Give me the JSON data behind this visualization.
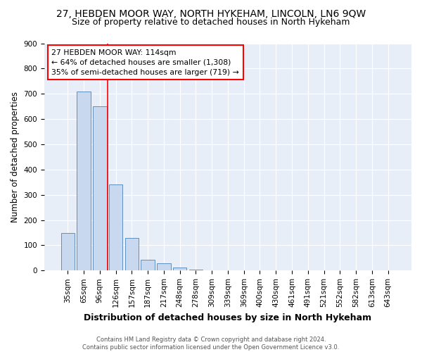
{
  "title_line1": "27, HEBDEN MOOR WAY, NORTH HYKEHAM, LINCOLN, LN6 9QW",
  "title_line2": "Size of property relative to detached houses in North Hykeham",
  "xlabel": "Distribution of detached houses by size in North Hykeham",
  "ylabel": "Number of detached properties",
  "footer_line1": "Contains HM Land Registry data © Crown copyright and database right 2024.",
  "footer_line2": "Contains public sector information licensed under the Open Government Licence v3.0.",
  "bar_labels": [
    "35sqm",
    "65sqm",
    "96sqm",
    "126sqm",
    "157sqm",
    "187sqm",
    "217sqm",
    "248sqm",
    "278sqm",
    "309sqm",
    "339sqm",
    "369sqm",
    "400sqm",
    "430sqm",
    "461sqm",
    "491sqm",
    "521sqm",
    "552sqm",
    "582sqm",
    "613sqm",
    "643sqm"
  ],
  "bar_values": [
    150,
    710,
    650,
    340,
    130,
    42,
    30,
    12,
    5,
    0,
    0,
    0,
    0,
    0,
    0,
    0,
    0,
    0,
    0,
    0,
    0
  ],
  "bar_color": "#c8d8ee",
  "bar_edge_color": "#6090c0",
  "vline_color": "red",
  "vline_position": 2.5,
  "annotation_title": "27 HEBDEN MOOR WAY: 114sqm",
  "annotation_line1": "← 64% of detached houses are smaller (1,308)",
  "annotation_line2": "35% of semi-detached houses are larger (719) →",
  "annotation_box_color": "white",
  "annotation_box_edge": "red",
  "ylim": [
    0,
    900
  ],
  "yticks": [
    0,
    100,
    200,
    300,
    400,
    500,
    600,
    700,
    800,
    900
  ],
  "background_color": "#ffffff",
  "plot_bg_color": "#e8eef8",
  "grid_color": "#ffffff",
  "title1_fontsize": 10,
  "title2_fontsize": 9,
  "xlabel_fontsize": 9,
  "ylabel_fontsize": 8.5,
  "tick_fontsize": 7.5,
  "footer_fontsize": 6
}
